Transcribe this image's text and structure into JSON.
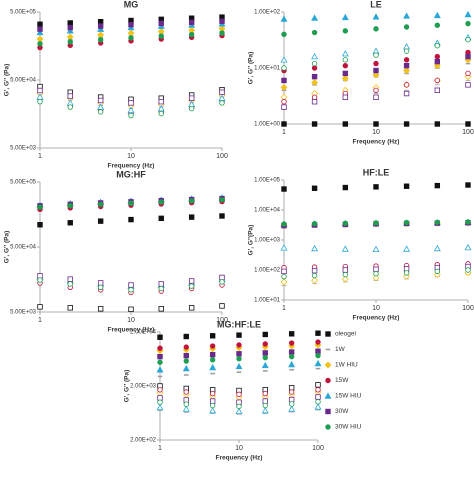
{
  "chart_data": [
    {
      "type": "scatter",
      "title": "MG",
      "xlabel": "Frequency (Hz)",
      "ylabel": "G', G'' (Pa)",
      "log_x": true,
      "log_y": true,
      "x": [
        1,
        2.15,
        4.64,
        10,
        21.5,
        46.4,
        100
      ],
      "xlim": [
        1,
        100
      ],
      "xticks": [
        1,
        10,
        100
      ],
      "ylim": [
        5000,
        500000
      ],
      "yticks": [
        {
          "value": 5000,
          "label": "5.00E+03"
        },
        {
          "value": 50000,
          "label": "5.00E+04"
        },
        {
          "value": 500000,
          "label": "5.00E+05"
        }
      ],
      "series": [
        {
          "color": "#111111",
          "marker": "square",
          "storage": [
            330000,
            345000,
            360000,
            375000,
            390000,
            405000,
            420000
          ],
          "loss": [
            40000,
            33000,
            28000,
            26000,
            27000,
            30000,
            36000
          ]
        },
        {
          "color": "#9e9e9e",
          "marker": "dash",
          "storage": [
            180000,
            195000,
            210000,
            222000,
            235000,
            248000,
            260000
          ],
          "loss": [
            30000,
            25000,
            21000,
            19000,
            20000,
            23000,
            28000
          ]
        },
        {
          "color": "#f2c21b",
          "marker": "diamond",
          "storage": [
            200000,
            215000,
            230000,
            245000,
            258000,
            270000,
            285000
          ],
          "loss": [
            32000,
            27000,
            23000,
            21000,
            22000,
            25000,
            30000
          ]
        },
        {
          "color": "#c0143c",
          "marker": "circle",
          "storage": [
            150000,
            162000,
            175000,
            188000,
            200000,
            212000,
            225000
          ],
          "loss": [
            26000,
            21000,
            18000,
            16000,
            17000,
            20000,
            24000
          ]
        },
        {
          "color": "#2aa7d6",
          "marker": "triangle",
          "storage": [
            250000,
            265000,
            280000,
            295000,
            310000,
            322000,
            335000
          ],
          "loss": [
            28000,
            23000,
            20000,
            18000,
            19000,
            22000,
            27000
          ]
        },
        {
          "color": "#6a2a8c",
          "marker": "square",
          "storage": [
            280000,
            295000,
            310000,
            325000,
            340000,
            352000,
            365000
          ],
          "loss": [
            35000,
            29000,
            25000,
            23000,
            24000,
            27000,
            33000
          ]
        },
        {
          "color": "#1e9e50",
          "marker": "circle",
          "storage": [
            170000,
            182000,
            195000,
            208000,
            220000,
            232000,
            245000
          ],
          "loss": [
            24000,
            20000,
            17000,
            15000,
            16000,
            19000,
            23000
          ]
        }
      ]
    },
    {
      "type": "scatter",
      "title": "LE",
      "xlabel": "Frequency (Hz)",
      "ylabel": "G', G'' (Pa)",
      "log_x": true,
      "log_y": true,
      "x": [
        1,
        2.15,
        4.64,
        10,
        21.5,
        46.4,
        100
      ],
      "xlim": [
        1,
        100
      ],
      "xticks": [
        1,
        10,
        100
      ],
      "ylim": [
        1,
        100
      ],
      "yticks": [
        {
          "value": 1,
          "label": "1.00E+00"
        },
        {
          "value": 10,
          "label": "1.00E+01"
        },
        {
          "value": 100,
          "label": "1.00E+02"
        }
      ],
      "series": [
        {
          "color": "#111111",
          "marker": "square",
          "storage": [
            1,
            1,
            1,
            1,
            1,
            1,
            1
          ]
        },
        {
          "color": "#9e9e9e",
          "marker": "dash",
          "storage": [
            4,
            5,
            6,
            7,
            8,
            10,
            12
          ],
          "loss": [
            2,
            2.5,
            3,
            3.5,
            4,
            5,
            6
          ]
        },
        {
          "color": "#f2c21b",
          "marker": "diamond",
          "storage": [
            4.5,
            5.5,
            6.5,
            7.5,
            9,
            11,
            14
          ],
          "loss": [
            3,
            3.5,
            4,
            4.5,
            5,
            6,
            7
          ]
        },
        {
          "color": "#c0143c",
          "marker": "circle",
          "storage": [
            9,
            10,
            11,
            12,
            14,
            16,
            19
          ],
          "loss": [
            2.5,
            3,
            3.5,
            4,
            5,
            6,
            8
          ]
        },
        {
          "color": "#2aa7d6",
          "marker": "triangle",
          "storage": [
            75,
            78,
            80,
            82,
            85,
            87,
            90
          ],
          "loss": [
            14,
            16,
            18,
            20,
            24,
            28,
            35
          ]
        },
        {
          "color": "#6a2a8c",
          "marker": "square",
          "storage": [
            6,
            7,
            8,
            9,
            11,
            13,
            16
          ],
          "loss": [
            2,
            2.5,
            3,
            3,
            3.5,
            4,
            5
          ]
        },
        {
          "color": "#1e9e50",
          "marker": "circle",
          "storage": [
            40,
            43,
            46,
            50,
            54,
            58,
            62
          ],
          "loss": [
            10,
            12,
            14,
            17,
            20,
            25,
            32
          ]
        }
      ]
    },
    {
      "type": "scatter",
      "title": "MG:HF",
      "xlabel": "Frequency (Hz)",
      "ylabel": "G', G'' (Pa)",
      "log_x": true,
      "log_y": true,
      "x": [
        1,
        2.15,
        4.64,
        10,
        21.5,
        46.4,
        100
      ],
      "xlim": [
        1,
        100
      ],
      "xticks": [
        1,
        10,
        100
      ],
      "ylim": [
        5000,
        500000
      ],
      "yticks": [
        {
          "value": 5000,
          "label": "5.00E+03"
        },
        {
          "value": 50000,
          "label": "5.00E+04"
        },
        {
          "value": 500000,
          "label": "5.00E+05"
        }
      ],
      "series": [
        {
          "color": "#111111",
          "marker": "square",
          "storage": [
            110000,
            118000,
            125000,
            132000,
            138000,
            144000,
            150000
          ],
          "loss": [
            6000,
            5800,
            5600,
            5500,
            5600,
            5800,
            6200
          ]
        },
        {
          "color": "#9e9e9e",
          "marker": "dash",
          "storage": [
            200000,
            210000,
            220000,
            230000,
            240000,
            250000,
            260000
          ],
          "loss": [
            15000,
            13000,
            12000,
            11000,
            11500,
            12500,
            14000
          ]
        },
        {
          "color": "#f2c21b",
          "marker": "diamond",
          "storage": [
            210000,
            222000,
            232000,
            242000,
            252000,
            262000,
            272000
          ],
          "loss": [
            16000,
            14000,
            12500,
            11500,
            12000,
            13000,
            15000
          ]
        },
        {
          "color": "#c0143c",
          "marker": "circle",
          "storage": [
            190000,
            200000,
            210000,
            220000,
            230000,
            240000,
            250000
          ],
          "loss": [
            14000,
            12000,
            11000,
            10000,
            10500,
            11500,
            13000
          ]
        },
        {
          "color": "#2aa7d6",
          "marker": "triangle",
          "storage": [
            220000,
            232000,
            244000,
            255000,
            265000,
            275000,
            285000
          ],
          "loss": [
            17000,
            15000,
            13500,
            12500,
            13000,
            14000,
            16000
          ]
        },
        {
          "color": "#6a2a8c",
          "marker": "square",
          "storage": [
            215000,
            227000,
            238000,
            248000,
            258000,
            268000,
            278000
          ],
          "loss": [
            18000,
            16000,
            14000,
            13000,
            13500,
            15000,
            17000
          ]
        },
        {
          "color": "#1e9e50",
          "marker": "circle",
          "storage": [
            205000,
            216000,
            226000,
            236000,
            246000,
            256000,
            266000
          ],
          "loss": [
            15500,
            13500,
            12000,
            11000,
            11500,
            12500,
            14500
          ]
        }
      ]
    },
    {
      "type": "scatter",
      "title": "HF:LE",
      "xlabel": "Frequency (Hz)",
      "ylabel": "G', G''(Pa)",
      "log_x": true,
      "log_y": true,
      "x": [
        1,
        2.15,
        4.64,
        10,
        21.5,
        46.4,
        100
      ],
      "xlim": [
        1,
        100
      ],
      "xticks": [
        1,
        10,
        100
      ],
      "ylim": [
        10,
        100000
      ],
      "yticks": [
        {
          "value": 10,
          "label": "1.00E+01"
        },
        {
          "value": 100,
          "label": "1.00E+02"
        },
        {
          "value": 1000,
          "label": "1.00E+03"
        },
        {
          "value": 10000,
          "label": "1.00E+04"
        },
        {
          "value": 100000,
          "label": "1.00E+05"
        }
      ],
      "series": [
        {
          "color": "#111111",
          "marker": "square",
          "storage": [
            50000,
            53000,
            56000,
            59000,
            62000,
            65000,
            68000
          ]
        },
        {
          "color": "#9e9e9e",
          "marker": "dash",
          "storage": [
            3000,
            3100,
            3200,
            3300,
            3400,
            3500,
            3600
          ],
          "loss": [
            30,
            35,
            40,
            45,
            50,
            60,
            70
          ]
        },
        {
          "color": "#f2c21b",
          "marker": "diamond",
          "storage": [
            3100,
            3200,
            3300,
            3400,
            3500,
            3600,
            3700
          ],
          "loss": [
            40,
            45,
            50,
            55,
            62,
            70,
            80
          ]
        },
        {
          "color": "#c0143c",
          "marker": "circle",
          "storage": [
            3200,
            3300,
            3400,
            3500,
            3600,
            3700,
            3800
          ],
          "loss": [
            120,
            125,
            130,
            135,
            140,
            150,
            160
          ]
        },
        {
          "color": "#2aa7d6",
          "marker": "triangle",
          "storage": [
            3300,
            3400,
            3500,
            3600,
            3700,
            3800,
            3900
          ],
          "loss": [
            550,
            520,
            500,
            490,
            500,
            520,
            560
          ]
        },
        {
          "color": "#6a2a8c",
          "marker": "square",
          "storage": [
            3000,
            3150,
            3300,
            3450,
            3550,
            3650,
            3750
          ],
          "loss": [
            90,
            95,
            100,
            105,
            110,
            120,
            130
          ]
        },
        {
          "color": "#1e9e50",
          "marker": "circle",
          "storage": [
            3400,
            3500,
            3600,
            3700,
            3800,
            3900,
            4000
          ],
          "loss": [
            60,
            65,
            70,
            75,
            80,
            90,
            100
          ]
        }
      ]
    },
    {
      "type": "scatter",
      "title": "MG:HF:LE",
      "xlabel": "Frequency (Hz)",
      "ylabel": "G', G'' (Pa)",
      "log_x": true,
      "log_y": true,
      "legend": "right",
      "x": [
        1,
        2.15,
        4.64,
        10,
        21.5,
        46.4,
        100
      ],
      "xlim": [
        1,
        100
      ],
      "xticks": [
        1,
        10,
        100
      ],
      "ylim": [
        200,
        20000
      ],
      "yticks": [
        {
          "value": 200,
          "label": "2.00E+02"
        },
        {
          "value": 2000,
          "label": "2.00E+03"
        },
        {
          "value": 20000,
          "label": "2.00E+04"
        }
      ],
      "series": [
        {
          "name": "oleogel",
          "color": "#111111",
          "marker": "square",
          "storage": [
            16000,
            16500,
            17000,
            17500,
            18000,
            18500,
            19000
          ],
          "loss": [
            2000,
            1800,
            1700,
            1650,
            1700,
            1850,
            2100
          ]
        },
        {
          "name": "1W",
          "color": "#9e9e9e",
          "marker": "dash",
          "storage": [
            3000,
            3200,
            3400,
            3600,
            3800,
            4000,
            4200
          ],
          "loss": [
            700,
            650,
            620,
            600,
            620,
            660,
            720
          ]
        },
        {
          "name": "1W HIU",
          "color": "#f2c21b",
          "marker": "diamond",
          "storage": [
            9000,
            9400,
            9800,
            10200,
            10600,
            11000,
            11500
          ],
          "loss": [
            1500,
            1400,
            1300,
            1250,
            1300,
            1400,
            1550
          ]
        },
        {
          "name": "15W",
          "color": "#c0143c",
          "marker": "circle",
          "storage": [
            10000,
            10500,
            11000,
            11500,
            12000,
            12500,
            13000
          ],
          "loss": [
            1700,
            1550,
            1450,
            1400,
            1450,
            1550,
            1700
          ]
        },
        {
          "name": "15W HIU",
          "color": "#2aa7d6",
          "marker": "triangle",
          "storage": [
            4000,
            4200,
            4400,
            4600,
            4800,
            5000,
            5200
          ],
          "loss": [
            800,
            750,
            700,
            680,
            700,
            750,
            820
          ]
        },
        {
          "name": "30W",
          "color": "#6a2a8c",
          "marker": "square",
          "storage": [
            7000,
            7300,
            7600,
            7900,
            8200,
            8500,
            8800
          ],
          "loss": [
            1200,
            1100,
            1050,
            1000,
            1050,
            1120,
            1250
          ]
        },
        {
          "name": "30W HIU",
          "color": "#1e9e50",
          "marker": "circle",
          "storage": [
            5500,
            5800,
            6100,
            6400,
            6700,
            7000,
            7300
          ],
          "loss": [
            1000,
            920,
            870,
            840,
            870,
            930,
            1020
          ]
        }
      ]
    }
  ]
}
